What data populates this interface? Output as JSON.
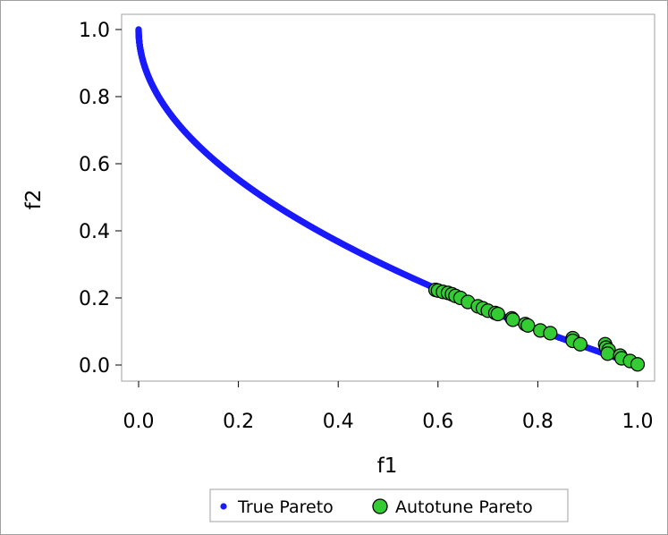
{
  "chart_data": {
    "type": "scatter",
    "xlabel": "f1",
    "ylabel": "f2",
    "xlim": [
      0.0,
      1.0
    ],
    "ylim": [
      0.0,
      1.0
    ],
    "x_ticks": [
      "0.0",
      "0.2",
      "0.4",
      "0.6",
      "0.8",
      "1.0"
    ],
    "y_ticks": [
      "0.0",
      "0.2",
      "0.4",
      "0.6",
      "0.8",
      "1.0"
    ],
    "grid": false,
    "legend_position": "bottom-center",
    "series": [
      {
        "name": "True Pareto",
        "marker": "small-dot",
        "color": "#1a1aff",
        "description_formula": "f2 = 1 - sqrt(f1), f1 in [0,1]",
        "points": [
          [
            0.0,
            1.0
          ],
          [
            0.001,
            0.968
          ],
          [
            0.002,
            0.955
          ],
          [
            0.004,
            0.937
          ],
          [
            0.006,
            0.923
          ],
          [
            0.008,
            0.911
          ],
          [
            0.01,
            0.9
          ],
          [
            0.013,
            0.886
          ],
          [
            0.016,
            0.874
          ],
          [
            0.02,
            0.859
          ],
          [
            0.025,
            0.842
          ],
          [
            0.03,
            0.827
          ],
          [
            0.036,
            0.81
          ],
          [
            0.042,
            0.795
          ],
          [
            0.05,
            0.776
          ],
          [
            0.058,
            0.759
          ],
          [
            0.067,
            0.741
          ],
          [
            0.077,
            0.723
          ],
          [
            0.088,
            0.703
          ],
          [
            0.1,
            0.684
          ],
          [
            0.113,
            0.664
          ],
          [
            0.127,
            0.644
          ],
          [
            0.142,
            0.623
          ],
          [
            0.158,
            0.603
          ],
          [
            0.175,
            0.582
          ],
          [
            0.193,
            0.561
          ],
          [
            0.212,
            0.54
          ],
          [
            0.232,
            0.518
          ],
          [
            0.253,
            0.497
          ],
          [
            0.275,
            0.476
          ],
          [
            0.298,
            0.454
          ],
          [
            0.322,
            0.433
          ],
          [
            0.347,
            0.411
          ],
          [
            0.373,
            0.389
          ],
          [
            0.4,
            0.368
          ],
          [
            0.428,
            0.346
          ],
          [
            0.457,
            0.324
          ],
          [
            0.487,
            0.302
          ],
          [
            0.518,
            0.28
          ],
          [
            0.55,
            0.258
          ],
          [
            0.583,
            0.236
          ],
          [
            0.617,
            0.215
          ],
          [
            0.652,
            0.193
          ],
          [
            0.688,
            0.171
          ],
          [
            0.725,
            0.149
          ],
          [
            0.763,
            0.127
          ],
          [
            0.802,
            0.105
          ],
          [
            0.842,
            0.082
          ],
          [
            0.883,
            0.06
          ],
          [
            0.925,
            0.038
          ],
          [
            0.962,
            0.019
          ],
          [
            0.985,
            0.008
          ],
          [
            1.0,
            0.0
          ]
        ]
      },
      {
        "name": "Autotune Pareto",
        "marker": "circle",
        "color": "#33cc33",
        "points": [
          [
            0.595,
            0.224
          ],
          [
            0.6,
            0.222
          ],
          [
            0.61,
            0.218
          ],
          [
            0.62,
            0.215
          ],
          [
            0.628,
            0.211
          ],
          [
            0.635,
            0.206
          ],
          [
            0.645,
            0.2
          ],
          [
            0.66,
            0.188
          ],
          [
            0.68,
            0.175
          ],
          [
            0.69,
            0.169
          ],
          [
            0.7,
            0.162
          ],
          [
            0.715,
            0.155
          ],
          [
            0.72,
            0.152
          ],
          [
            0.748,
            0.139
          ],
          [
            0.75,
            0.135
          ],
          [
            0.775,
            0.122
          ],
          [
            0.78,
            0.118
          ],
          [
            0.805,
            0.103
          ],
          [
            0.825,
            0.095
          ],
          [
            0.87,
            0.08
          ],
          [
            0.87,
            0.072
          ],
          [
            0.885,
            0.062
          ],
          [
            0.935,
            0.062
          ],
          [
            0.937,
            0.052
          ],
          [
            0.942,
            0.045
          ],
          [
            0.94,
            0.034
          ],
          [
            0.965,
            0.028
          ],
          [
            0.968,
            0.02
          ],
          [
            0.985,
            0.012
          ],
          [
            1.0,
            0.002
          ]
        ]
      }
    ]
  }
}
